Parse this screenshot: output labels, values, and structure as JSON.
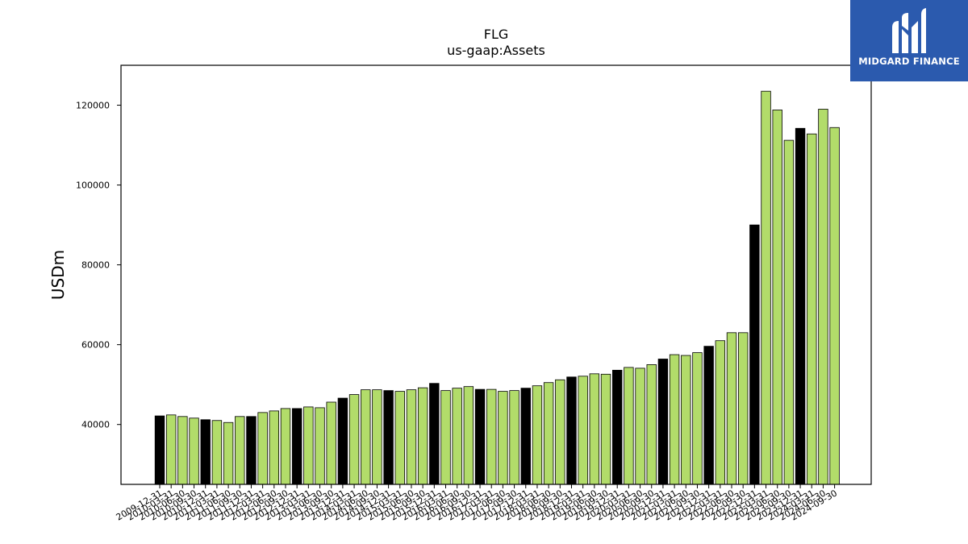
{
  "brand": {
    "name": "MIDGARD FINANCE",
    "logo_color": "#2b5aae"
  },
  "chart_data": {
    "type": "bar",
    "title": "FLG",
    "subtitle": "us-gaap:Assets",
    "xlabel": "",
    "ylabel": "USDm",
    "ylim": [
      25000,
      130000
    ],
    "yticks": [
      40000,
      60000,
      80000,
      100000,
      120000
    ],
    "grid": false,
    "colors": {
      "annual": "#000000",
      "quarterly": "#b2dc6a",
      "edge": "#000000"
    },
    "categories": [
      "2009-12-31",
      "2010-03-31",
      "2010-06-30",
      "2010-09-30",
      "2010-12-31",
      "2011-03-31",
      "2011-06-30",
      "2011-09-30",
      "2011-12-31",
      "2012-03-31",
      "2012-06-30",
      "2012-09-30",
      "2012-12-31",
      "2013-03-31",
      "2013-06-30",
      "2013-09-30",
      "2013-12-31",
      "2014-03-31",
      "2014-06-30",
      "2014-09-30",
      "2014-12-31",
      "2015-03-31",
      "2015-06-30",
      "2015-09-30",
      "2015-12-31",
      "2016-03-31",
      "2016-06-30",
      "2016-09-30",
      "2016-12-31",
      "2017-03-31",
      "2017-06-30",
      "2017-09-30",
      "2017-12-31",
      "2018-03-31",
      "2018-06-30",
      "2018-09-30",
      "2018-12-31",
      "2019-03-31",
      "2019-06-30",
      "2019-09-30",
      "2019-12-31",
      "2020-03-31",
      "2020-06-30",
      "2020-09-30",
      "2020-12-31",
      "2021-03-31",
      "2021-06-30",
      "2021-09-30",
      "2021-12-31",
      "2022-03-31",
      "2022-06-30",
      "2022-09-30",
      "2022-12-31",
      "2023-03-31",
      "2023-06-30",
      "2023-09-30",
      "2023-12-31",
      "2024-03-31",
      "2024-06-30",
      "2024-09-30"
    ],
    "values": [
      42150,
      42400,
      42000,
      41600,
      41200,
      41000,
      40500,
      42000,
      42000,
      43000,
      43400,
      44000,
      44000,
      44400,
      44200,
      45600,
      46600,
      47500,
      48700,
      48700,
      48500,
      48300,
      48700,
      49200,
      50300,
      48500,
      49100,
      49500,
      48800,
      48800,
      48300,
      48500,
      49100,
      49700,
      50500,
      51200,
      51900,
      52100,
      52700,
      52600,
      53600,
      54300,
      54100,
      55000,
      56400,
      57500,
      57300,
      58000,
      59600,
      61000,
      63000,
      63000,
      90000,
      123500,
      118800,
      111200,
      114200,
      112800,
      119000,
      114400
    ],
    "bar_types": [
      "annual",
      "quarterly",
      "quarterly",
      "quarterly",
      "annual",
      "quarterly",
      "quarterly",
      "quarterly",
      "annual",
      "quarterly",
      "quarterly",
      "quarterly",
      "annual",
      "quarterly",
      "quarterly",
      "quarterly",
      "annual",
      "quarterly",
      "quarterly",
      "quarterly",
      "annual",
      "quarterly",
      "quarterly",
      "quarterly",
      "annual",
      "quarterly",
      "quarterly",
      "quarterly",
      "annual",
      "quarterly",
      "quarterly",
      "quarterly",
      "annual",
      "quarterly",
      "quarterly",
      "quarterly",
      "annual",
      "quarterly",
      "quarterly",
      "quarterly",
      "annual",
      "quarterly",
      "quarterly",
      "quarterly",
      "annual",
      "quarterly",
      "quarterly",
      "quarterly",
      "annual",
      "quarterly",
      "quarterly",
      "quarterly",
      "annual",
      "quarterly",
      "quarterly",
      "quarterly",
      "annual",
      "quarterly",
      "quarterly",
      "quarterly"
    ]
  }
}
